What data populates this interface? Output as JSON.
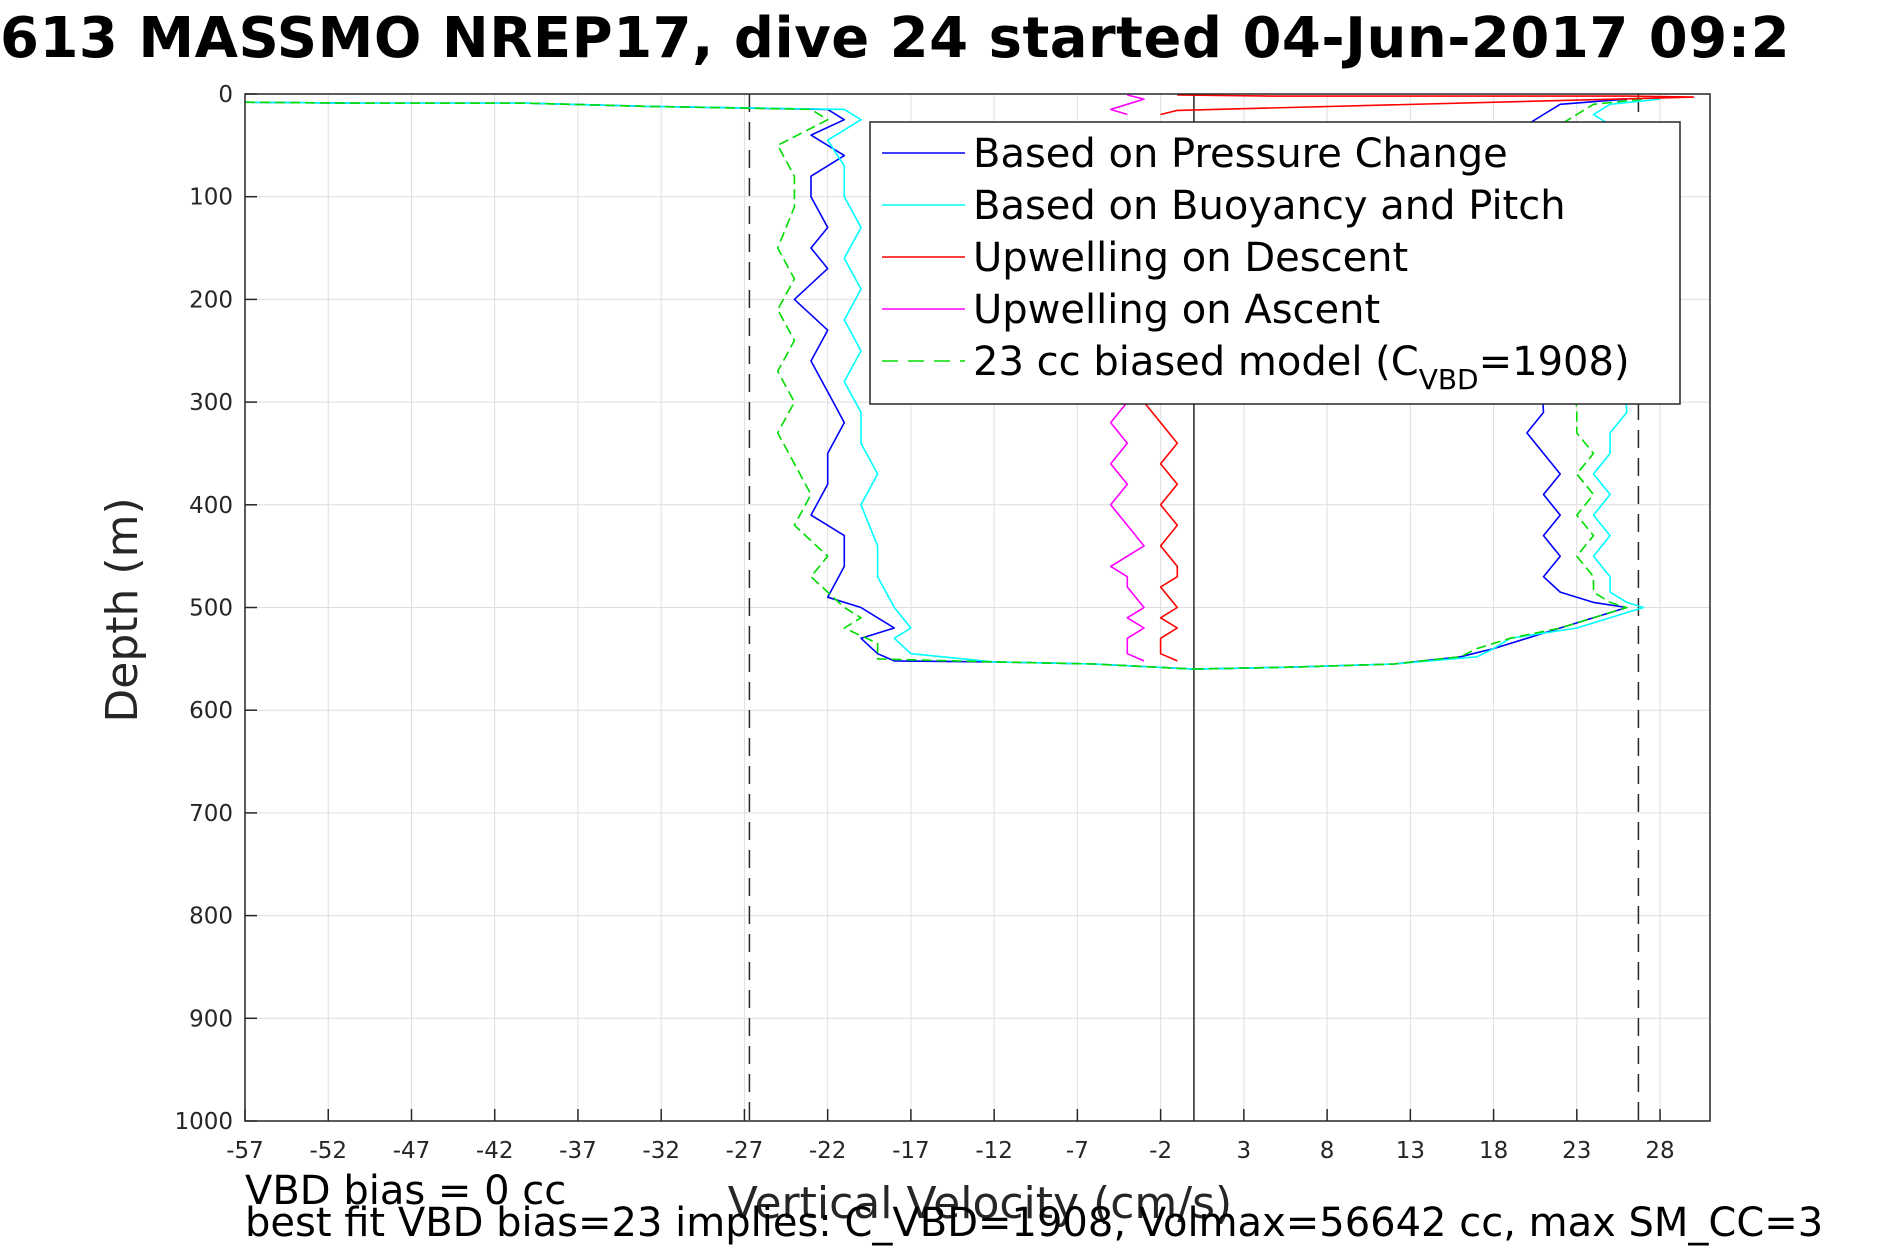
{
  "chart_data": {
    "type": "line",
    "title": "613 MASSMO NREP17, dive 24 started 04-Jun-2017 09:2",
    "xlabel": "Vertical Velocity (cm/s)",
    "ylabel": "Depth (m)",
    "xlim": [
      -57,
      31
    ],
    "ylim": [
      0,
      1000
    ],
    "y_reversed": true,
    "grid": true,
    "xticks": [
      -57,
      -52,
      -47,
      -42,
      -37,
      -32,
      -27,
      -22,
      -17,
      -12,
      -7,
      -2,
      3,
      8,
      13,
      18,
      23,
      28
    ],
    "yticks": [
      0,
      100,
      200,
      300,
      400,
      500,
      600,
      700,
      800,
      900,
      1000
    ],
    "vertical_lines": [
      {
        "x": -26.7,
        "style": "dashed"
      },
      {
        "x": 0,
        "style": "solid"
      },
      {
        "x": 26.7,
        "style": "dashed"
      }
    ],
    "legend_position": "top-right",
    "legend": [
      {
        "label": "Based on Pressure Change",
        "color": "#0000ff",
        "style": "solid"
      },
      {
        "label": "Based on Buoyancy and Pitch",
        "color": "#00ffff",
        "style": "solid"
      },
      {
        "label": "Upwelling on Descent",
        "color": "#ff0000",
        "style": "solid"
      },
      {
        "label": "Upwelling on Ascent",
        "color": "#ff00ff",
        "style": "solid"
      },
      {
        "label_main": "23 cc biased model (C",
        "label_sub": "VBD",
        "label_end": "=1908)",
        "color": "#00dd00",
        "style": "dashed"
      }
    ],
    "series": [
      {
        "name": "Based on Pressure Change",
        "color": "#0000ff",
        "x": [
          -57,
          -50,
          -40,
          -33,
          -22,
          -21,
          -23,
          -21,
          -23,
          -23,
          -22,
          -23,
          -22,
          -24,
          -22,
          -23,
          -22,
          -21,
          -22,
          -22,
          -23,
          -21,
          -21,
          -22,
          -20,
          -19,
          -18,
          -20,
          -19,
          -18,
          -12,
          -6,
          0
        ],
        "y": [
          8,
          9,
          9,
          12,
          15,
          25,
          40,
          60,
          80,
          100,
          130,
          150,
          170,
          200,
          230,
          260,
          290,
          320,
          350,
          380,
          410,
          430,
          460,
          490,
          500,
          510,
          520,
          530,
          545,
          552,
          553,
          555,
          560
        ]
      },
      {
        "name": "Based on Buoyancy and Pitch",
        "color": "#00ffff",
        "x": [
          -57,
          -50,
          -40,
          -33,
          -21,
          -20,
          -22,
          -21,
          -21,
          -20,
          -21,
          -20,
          -21,
          -20,
          -21,
          -20,
          -20,
          -19,
          -20,
          -19,
          -19,
          -18,
          -17,
          -18,
          -17,
          -12,
          -6,
          0
        ],
        "y": [
          8,
          9,
          9,
          12,
          15,
          25,
          45,
          70,
          100,
          130,
          160,
          190,
          220,
          250,
          280,
          310,
          340,
          370,
          400,
          440,
          470,
          500,
          520,
          530,
          545,
          553,
          555,
          560
        ]
      },
      {
        "name": "Upwelling on Descent",
        "color": "#ff0000",
        "x": [
          -3,
          -2,
          -1,
          -2,
          -1,
          -2,
          -1,
          -2,
          -1,
          -1,
          -2,
          -1,
          -2,
          -1,
          -2,
          -2,
          -1
        ],
        "y": [
          300,
          320,
          340,
          360,
          380,
          400,
          420,
          440,
          460,
          470,
          480,
          500,
          510,
          520,
          530,
          545,
          552
        ]
      },
      {
        "name": "Upwelling on Ascent",
        "color": "#ff00ff",
        "x": [
          -4,
          -5,
          -4,
          -5,
          -4,
          -5,
          -4,
          -3,
          -5,
          -4,
          -4,
          -3,
          -4,
          -3,
          -4,
          -4,
          -3
        ],
        "y": [
          300,
          320,
          340,
          360,
          380,
          400,
          420,
          440,
          460,
          470,
          480,
          500,
          510,
          520,
          530,
          545,
          552
        ]
      },
      {
        "name": "23 cc biased model (CVBD=1908)",
        "color": "#00dd00",
        "x": [
          -57,
          -50,
          -40,
          -33,
          -23,
          -22,
          -25,
          -24,
          -24,
          -25,
          -24,
          -25,
          -24,
          -25,
          -24,
          -25,
          -24,
          -23,
          -24,
          -22,
          -23,
          -21,
          -20,
          -21,
          -19,
          -19,
          -12,
          -6,
          0
        ],
        "y": [
          8,
          9,
          9,
          12,
          15,
          25,
          50,
          80,
          110,
          150,
          180,
          210,
          240,
          270,
          300,
          330,
          360,
          390,
          420,
          450,
          470,
          500,
          510,
          520,
          535,
          550,
          553,
          555,
          560
        ]
      },
      {
        "name": "Ascent: Based on Pressure Change",
        "color": "#0000ff",
        "x": [
          0,
          6,
          12,
          16,
          18,
          20,
          22,
          26,
          24,
          22,
          21,
          22,
          21,
          22,
          21,
          22,
          21,
          20,
          21,
          20,
          21,
          22,
          26
        ],
        "y": [
          560,
          558,
          555,
          548,
          540,
          530,
          520,
          500,
          495,
          485,
          470,
          450,
          430,
          410,
          390,
          370,
          350,
          330,
          310,
          30,
          20,
          10,
          5
        ]
      },
      {
        "name": "Ascent: Based on Buoyancy and Pitch",
        "color": "#00ffff",
        "x": [
          0,
          6,
          12,
          17,
          18,
          19,
          23,
          27,
          26,
          25,
          25,
          24,
          25,
          24,
          25,
          24,
          25,
          25,
          26,
          25,
          24,
          25,
          28
        ],
        "y": [
          560,
          558,
          555,
          548,
          540,
          530,
          520,
          500,
          495,
          485,
          470,
          450,
          430,
          410,
          390,
          370,
          350,
          330,
          310,
          30,
          20,
          10,
          5
        ]
      },
      {
        "name": "Ascent: 23 cc biased model",
        "color": "#00dd00",
        "x": [
          0,
          6,
          12,
          16,
          17,
          19,
          22,
          26,
          25,
          24,
          24,
          23,
          24,
          23,
          24,
          23,
          24,
          23,
          23,
          22,
          23,
          24,
          27
        ],
        "y": [
          560,
          558,
          555,
          548,
          540,
          530,
          520,
          500,
          495,
          485,
          470,
          450,
          430,
          410,
          390,
          370,
          350,
          330,
          310,
          30,
          20,
          10,
          5
        ]
      },
      {
        "name": "Surface: Upwelling on Descent",
        "color": "#ff0000",
        "x": [
          -2,
          -1,
          30,
          26,
          5,
          -1
        ],
        "y": [
          20,
          16,
          3,
          2,
          2,
          1
        ]
      },
      {
        "name": "Surface: Upwelling on Ascent",
        "color": "#ff00ff",
        "x": [
          -4,
          -5,
          -4,
          -3,
          -4
        ],
        "y": [
          20,
          15,
          10,
          5,
          1
        ]
      }
    ]
  },
  "notes": {
    "vbd_bias": "VBD bias = 0 cc",
    "best_fit": "best fit VBD bias=23 implies: C_VBD=1908, Volmax=56642 cc, max SM_CC=3"
  }
}
